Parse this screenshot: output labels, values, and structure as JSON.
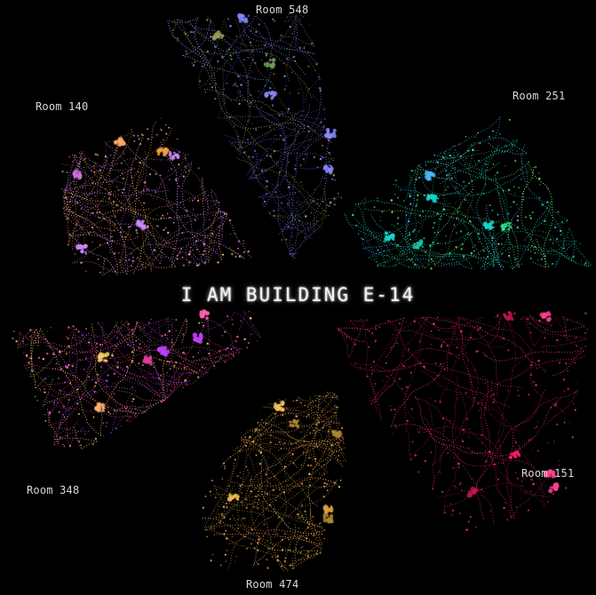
{
  "title": "I AM BUILDING E-14",
  "rooms": [
    {
      "key": "r548",
      "label": "Room 548",
      "palette": [
        "#5b5bd6",
        "#7a7ae0",
        "#9a9a55",
        "#8888ff",
        "#6f9a5a"
      ]
    },
    {
      "key": "r251",
      "label": "Room 251",
      "palette": [
        "#18d6d0",
        "#2fe08a",
        "#4ab6ff",
        "#7cf25a",
        "#1ec6a8"
      ]
    },
    {
      "key": "r140",
      "label": "Room 140",
      "palette": [
        "#f0a040",
        "#e890c8",
        "#d070e0",
        "#ffb060",
        "#c98aff"
      ]
    },
    {
      "key": "r348",
      "label": "Room 348",
      "palette": [
        "#ff60b0",
        "#e03aa0",
        "#ffb070",
        "#c040ff",
        "#f8d060"
      ]
    },
    {
      "key": "r151",
      "label": "Room 151",
      "palette": [
        "#ff2060",
        "#e0207a",
        "#ff4090",
        "#c01850",
        "#ff3048"
      ]
    },
    {
      "key": "r474",
      "label": "Room 474",
      "palette": [
        "#d8a040",
        "#f0c060",
        "#b08830",
        "#e8b850",
        "#ff8848"
      ]
    }
  ]
}
